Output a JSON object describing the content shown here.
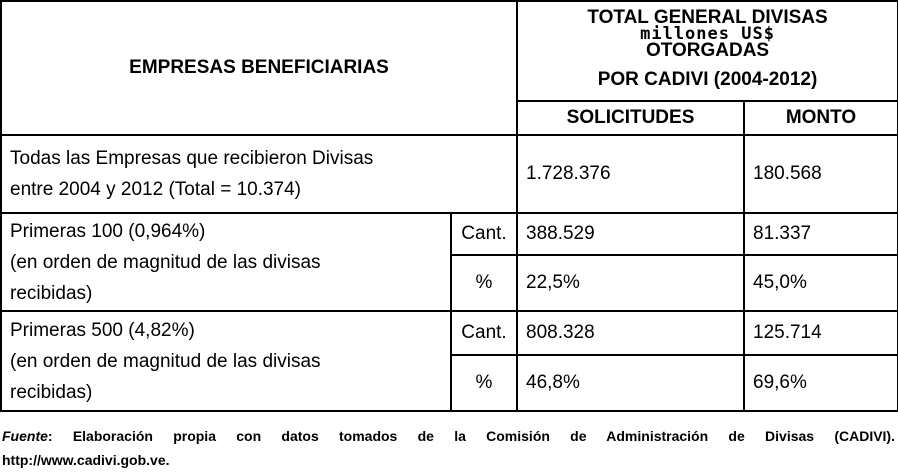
{
  "table": {
    "header": {
      "company_col": "EMPRESAS BENEFICIARIAS",
      "title_line1": "TOTAL GENERAL DIVISAS",
      "title_units": "millones US$",
      "title_line2": "OTORGADAS",
      "title_line3": "POR CADIVI (2004-2012)",
      "col_requests": "SOLICITUDES",
      "col_amount": "MONTO"
    },
    "rows": [
      {
        "label_line1": "Todas las Empresas que recibieron Divisas",
        "label_line2": "entre 2004 y 2012 (Total = 10.374)",
        "requests": "1.728.376",
        "amount": "180.568"
      },
      {
        "label_line1": "Primeras 100 (0,964%)",
        "label_line2": "(en orden de magnitud de las divisas",
        "label_line3": "recibidas)",
        "qty_label": "Cant.",
        "qty_requests": "388.529",
        "qty_amount": "81.337",
        "pct_label": "%",
        "pct_requests": "22,5%",
        "pct_amount": "45,0%"
      },
      {
        "label_line1": "Primeras 500 (4,82%)",
        "label_line2": "(en orden de magnitud de las divisas",
        "label_line3": "recibidas)",
        "qty_label": "Cant.",
        "qty_requests": "808.328",
        "qty_amount": "125.714",
        "pct_label": "%",
        "pct_requests": "46,8%",
        "pct_amount": "69,6%"
      }
    ]
  },
  "footer": {
    "source_label": "Fuente",
    "source_text": ": Elaboración propia con datos tomados de la Comisión de Administración de Divisas (CADIVI).",
    "url": "http://www.cadivi.gob.ve."
  }
}
